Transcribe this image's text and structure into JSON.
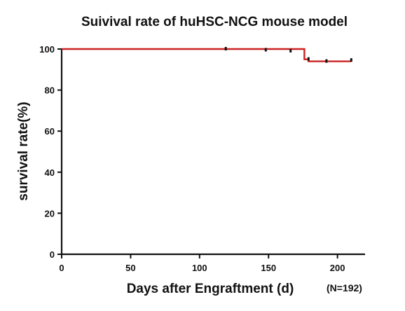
{
  "chart_data": {
    "type": "line",
    "title": "Suivival rate of huHSC-NCG mouse model",
    "xlabel": "Days after Engraftment (d)",
    "ylabel": "survival rate(%)",
    "note": "(N=192)",
    "xlim": [
      0,
      220
    ],
    "ylim": [
      0,
      100
    ],
    "x_ticks": [
      0,
      50,
      100,
      150,
      200
    ],
    "y_ticks": [
      0,
      20,
      40,
      60,
      80,
      100
    ],
    "x_tick_labels": [
      "0",
      "50",
      "100",
      "150",
      "200"
    ],
    "y_tick_labels": [
      "0",
      "20",
      "40",
      "60",
      "80",
      "100"
    ],
    "grid": false,
    "step": true,
    "line_color": "#cc2222",
    "series": [
      {
        "x": [
          0,
          176,
          176,
          179,
          179,
          210
        ],
        "y": [
          100,
          100,
          95,
          95,
          94,
          94
        ]
      }
    ],
    "censor_marks": {
      "x": [
        119,
        148,
        166,
        179,
        192,
        210
      ],
      "y": [
        100,
        99.5,
        99,
        95,
        94,
        94.5
      ]
    }
  }
}
